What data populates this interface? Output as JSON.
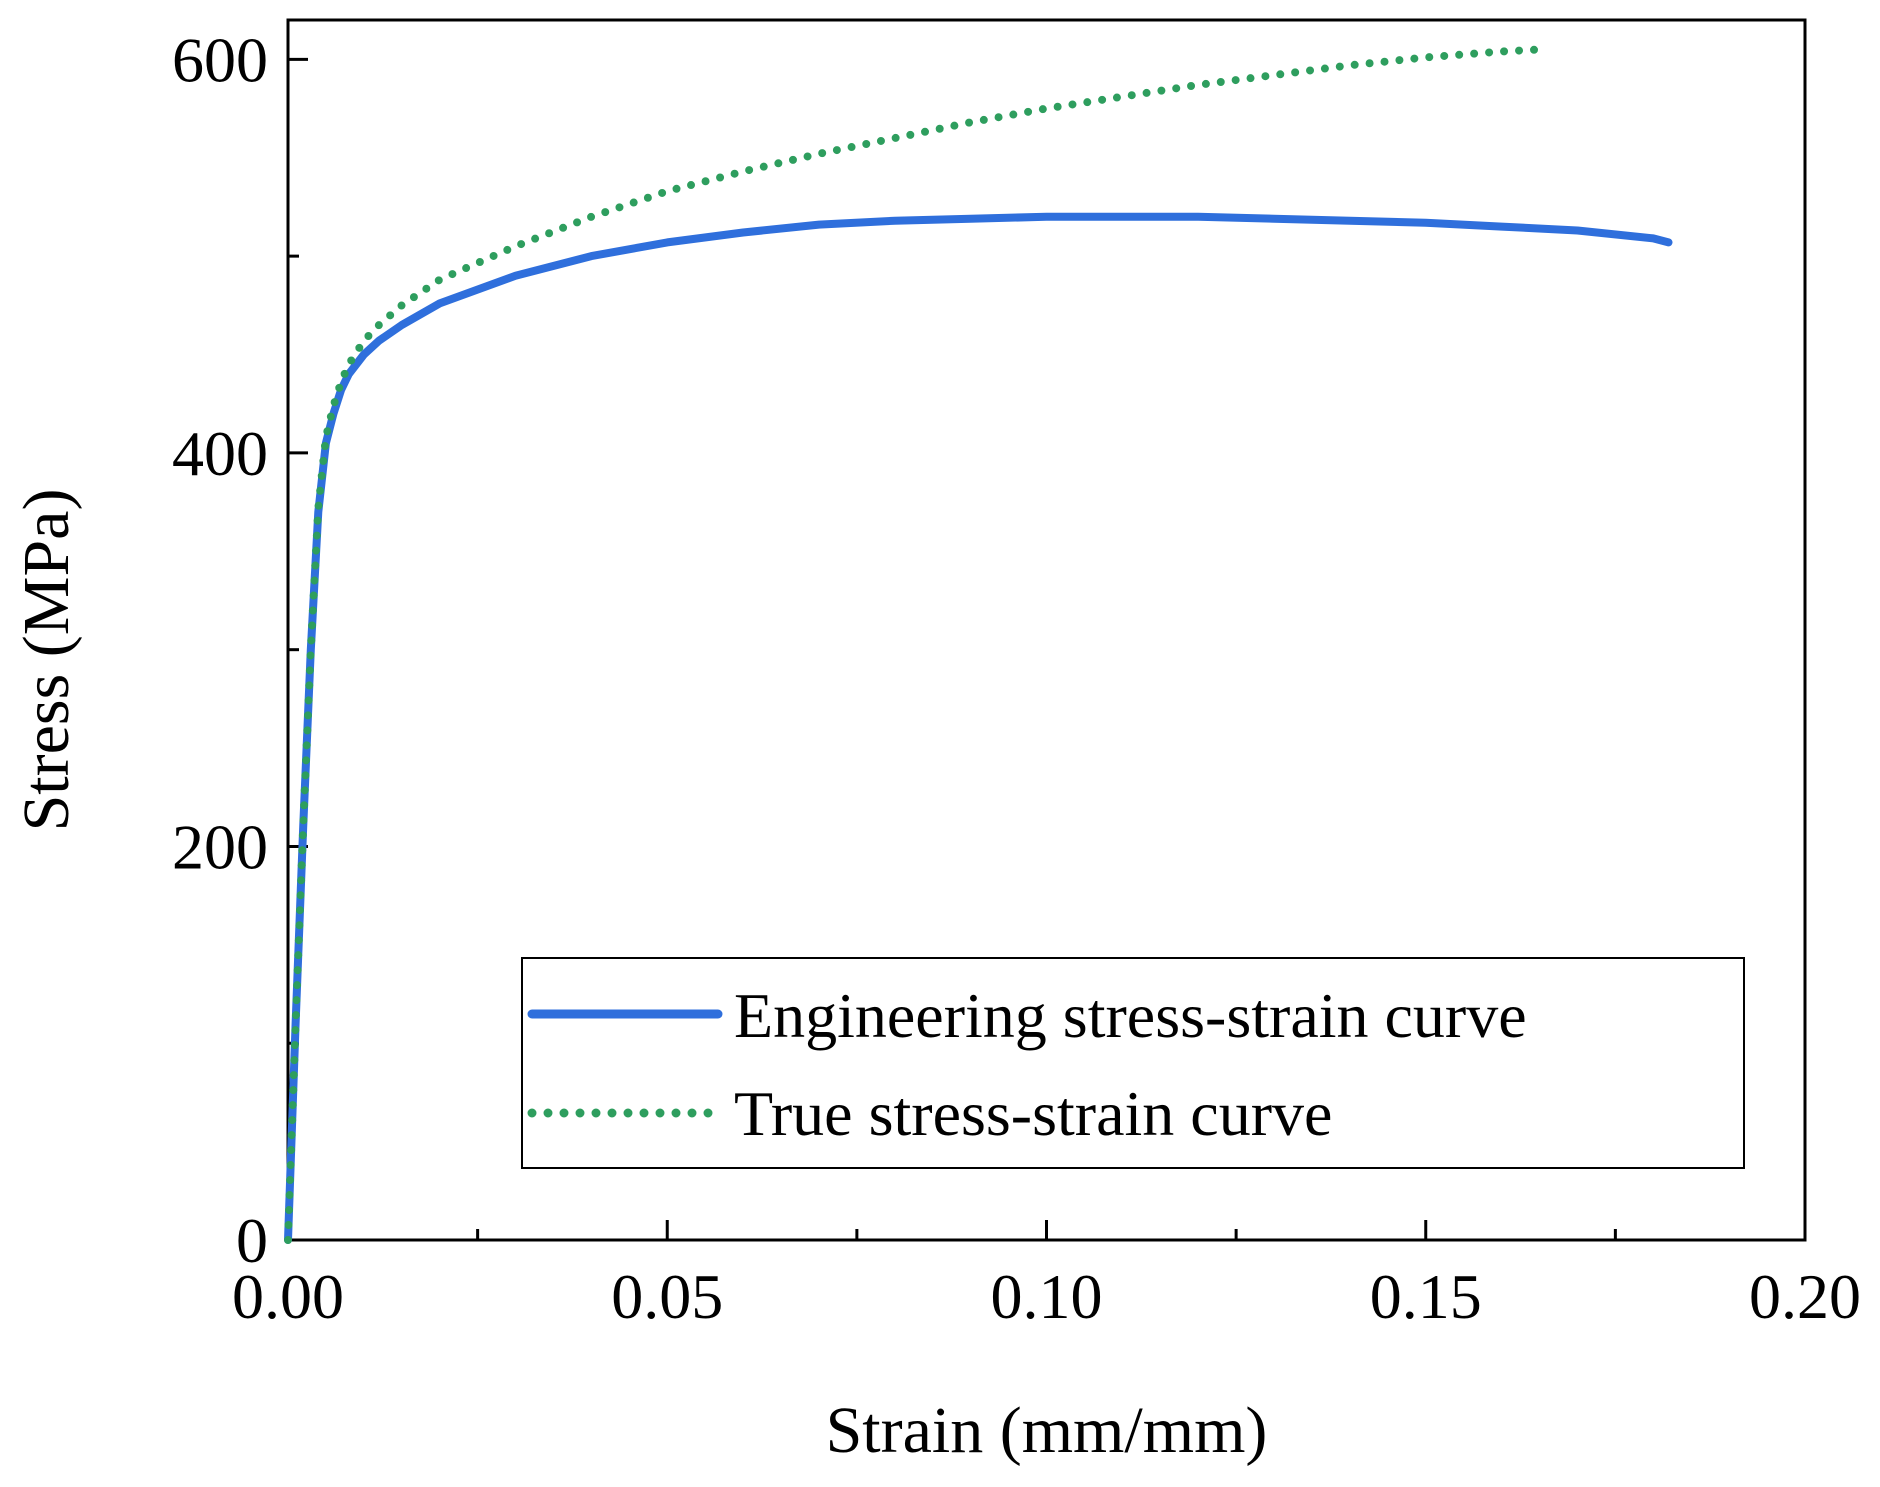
{
  "chart_data": {
    "type": "line",
    "title": "",
    "xlabel": "Strain (mm/mm)",
    "ylabel": "Stress (MPa)",
    "xlim": [
      0,
      0.2
    ],
    "ylim": [
      0,
      620
    ],
    "x_ticks": [
      0,
      0.05,
      0.1,
      0.15,
      0.2
    ],
    "x_tick_labels": [
      "0.00",
      "0.05",
      "0.10",
      "0.15",
      "0.20"
    ],
    "x_minor_ticks": [
      0.025,
      0.075,
      0.125,
      0.175
    ],
    "y_ticks": [
      0,
      200,
      400,
      600
    ],
    "y_tick_labels": [
      "0",
      "200",
      "400",
      "600"
    ],
    "y_minor_ticks": [
      100,
      300,
      500
    ],
    "grid": false,
    "legend_position": "bottom-right",
    "series": [
      {
        "name": "Engineering stress-strain curve",
        "style": "solid",
        "color": "#2f6fdc",
        "x": [
          0,
          0.001,
          0.002,
          0.003,
          0.004,
          0.005,
          0.006,
          0.007,
          0.008,
          0.01,
          0.012,
          0.015,
          0.02,
          0.03,
          0.04,
          0.05,
          0.06,
          0.07,
          0.08,
          0.09,
          0.1,
          0.11,
          0.12,
          0.13,
          0.14,
          0.15,
          0.16,
          0.17,
          0.18,
          0.182
        ],
        "y": [
          0,
          110,
          210,
          300,
          370,
          405,
          420,
          432,
          440,
          450,
          457,
          465,
          476,
          490,
          500,
          507,
          512,
          516,
          518,
          519,
          520,
          520,
          520,
          519,
          518,
          517,
          515,
          513,
          509,
          507
        ]
      },
      {
        "name": "True stress-strain curve",
        "style": "dotted",
        "color": "#2e9e5e",
        "x": [
          0,
          0.001,
          0.002,
          0.003,
          0.004,
          0.005,
          0.006,
          0.007,
          0.008,
          0.01,
          0.012,
          0.015,
          0.02,
          0.03,
          0.04,
          0.05,
          0.06,
          0.07,
          0.08,
          0.09,
          0.1,
          0.11,
          0.12,
          0.13,
          0.14,
          0.15,
          0.16,
          0.165
        ],
        "y": [
          0,
          110,
          210,
          300,
          372,
          408,
          424,
          436,
          445,
          457,
          465,
          475,
          488,
          505,
          520,
          533,
          543,
          552,
          560,
          568,
          575,
          581,
          587,
          592,
          597,
          601,
          604,
          605
        ]
      }
    ]
  }
}
